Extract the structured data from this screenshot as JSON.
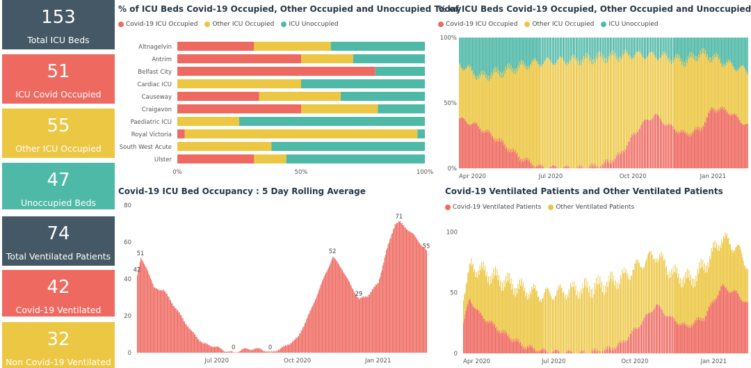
{
  "colors": {
    "covid": "#ee6a61",
    "other": "#ecc744",
    "unocc": "#4fb9a8",
    "dark": "#445965"
  },
  "kpis": [
    {
      "value": "153",
      "label": "Total ICU Beds",
      "color": "#445965"
    },
    {
      "value": "51",
      "label": "ICU Covid Occupied",
      "color": "#ee6a61"
    },
    {
      "value": "55",
      "label": "Other ICU Occupied",
      "color": "#ecc744"
    },
    {
      "value": "47",
      "label": "Unoccupied Beds",
      "color": "#4fb9a8"
    },
    {
      "value": "74",
      "label": "Total Ventilated Patients",
      "color": "#445965"
    },
    {
      "value": "42",
      "label": "Covid-19 Ventilated",
      "color": "#ee6a61"
    },
    {
      "value": "32",
      "label": "Non Covid-19 Ventilated",
      "color": "#ecc744"
    }
  ],
  "chart_data": [
    {
      "type": "bar",
      "title": "% of ICU Beds Covid-19 Occupied, Other Occupied and Unoccupied Today",
      "orientation": "horizontal-stacked-100",
      "legend": [
        "Covid-19 ICU Occupied",
        "Other ICU Occupied",
        "ICU Unoccupied"
      ],
      "categories": [
        "Altnagelvin",
        "Antrim",
        "Belfast City",
        "Cardiac ICU",
        "Causeway",
        "Craigavon",
        "Paediatric ICU",
        "Royal Victoria",
        "South West Acute",
        "Ulster"
      ],
      "series": [
        {
          "name": "Covid-19 ICU Occupied",
          "values": [
            31,
            50,
            80,
            0,
            33,
            50,
            0,
            3,
            0,
            31
          ]
        },
        {
          "name": "Other ICU Occupied",
          "values": [
            31,
            21,
            0,
            50,
            33,
            31,
            25,
            94,
            38,
            13
          ]
        },
        {
          "name": "ICU Unoccupied",
          "values": [
            38,
            29,
            20,
            50,
            34,
            19,
            75,
            3,
            62,
            56
          ]
        }
      ],
      "xticks": [
        "0%",
        "50%",
        "100%"
      ],
      "xlim": [
        0,
        100
      ]
    },
    {
      "type": "area",
      "title": "% of ICU Beds Covid-19 Occupied, Other Occupied and Unoccupied",
      "legend": [
        "Covid-19 ICU Occupied",
        "Other ICU Occupied",
        "ICU Unoccupied"
      ],
      "x_start": "2020-04-01",
      "x_end": "2021-02-25",
      "xticks": [
        "Apr 2020",
        "Jul 2020",
        "Oct 2020",
        "Jan 2021"
      ],
      "yticks": [
        "0%",
        "50%",
        "100%"
      ],
      "ylim": [
        0,
        100
      ],
      "covid_pct_keypoints": [
        [
          "2020-04-01",
          38
        ],
        [
          "2020-04-20",
          33
        ],
        [
          "2020-05-15",
          22
        ],
        [
          "2020-06-10",
          8
        ],
        [
          "2020-07-01",
          1
        ],
        [
          "2020-08-15",
          0
        ],
        [
          "2020-09-10",
          2
        ],
        [
          "2020-10-01",
          10
        ],
        [
          "2020-10-25",
          33
        ],
        [
          "2020-11-10",
          41
        ],
        [
          "2020-11-25",
          33
        ],
        [
          "2020-12-15",
          26
        ],
        [
          "2021-01-01",
          30
        ],
        [
          "2021-01-15",
          46
        ],
        [
          "2021-02-01",
          44
        ],
        [
          "2021-02-25",
          32
        ]
      ],
      "occupied_pct_keypoints": [
        [
          "2020-04-01",
          80
        ],
        [
          "2020-04-25",
          70
        ],
        [
          "2020-05-20",
          74
        ],
        [
          "2020-06-20",
          80
        ],
        [
          "2020-07-15",
          82
        ],
        [
          "2020-08-15",
          83
        ],
        [
          "2020-09-15",
          85
        ],
        [
          "2020-10-15",
          87
        ],
        [
          "2020-11-15",
          86
        ],
        [
          "2020-12-15",
          82
        ],
        [
          "2021-01-01",
          88
        ],
        [
          "2021-01-15",
          85
        ],
        [
          "2021-02-01",
          80
        ],
        [
          "2021-02-25",
          74
        ]
      ]
    },
    {
      "type": "area",
      "title": "Covid-19 ICU Bed Occupancy : 5 Day Rolling Average",
      "x_start": "2020-04-01",
      "x_end": "2021-02-25",
      "xticks": [
        "Jul 2020",
        "Oct 2020",
        "Jan 2021"
      ],
      "yticks": [
        "0",
        "20",
        "40",
        "60",
        "80"
      ],
      "ylim": [
        0,
        80
      ],
      "keypoints": [
        [
          "2020-04-01",
          42
        ],
        [
          "2020-04-05",
          51
        ],
        [
          "2020-04-12",
          46
        ],
        [
          "2020-04-20",
          35
        ],
        [
          "2020-05-01",
          34
        ],
        [
          "2020-05-15",
          24
        ],
        [
          "2020-06-01",
          12
        ],
        [
          "2020-06-15",
          5
        ],
        [
          "2020-07-01",
          3
        ],
        [
          "2020-07-10",
          1
        ],
        [
          "2020-07-20",
          0
        ],
        [
          "2020-08-01",
          2
        ],
        [
          "2020-08-20",
          2
        ],
        [
          "2020-08-31",
          0
        ],
        [
          "2020-09-15",
          3
        ],
        [
          "2020-10-01",
          8
        ],
        [
          "2020-10-15",
          22
        ],
        [
          "2020-11-01",
          42
        ],
        [
          "2020-11-10",
          52
        ],
        [
          "2020-11-20",
          46
        ],
        [
          "2020-12-01",
          36
        ],
        [
          "2020-12-10",
          29
        ],
        [
          "2020-12-20",
          31
        ],
        [
          "2021-01-01",
          38
        ],
        [
          "2021-01-10",
          55
        ],
        [
          "2021-01-20",
          70
        ],
        [
          "2021-01-25",
          71
        ],
        [
          "2021-02-10",
          64
        ],
        [
          "2021-02-20",
          58
        ],
        [
          "2021-02-25",
          55
        ]
      ],
      "data_labels": [
        {
          "date": "2020-04-01",
          "value": "42"
        },
        {
          "date": "2020-04-05",
          "value": "51"
        },
        {
          "date": "2020-07-20",
          "value": "0"
        },
        {
          "date": "2020-08-31",
          "value": "0"
        },
        {
          "date": "2020-11-10",
          "value": "52"
        },
        {
          "date": "2020-12-10",
          "value": "29"
        },
        {
          "date": "2021-01-25",
          "value": "71"
        },
        {
          "date": "2021-02-25",
          "value": "55"
        }
      ]
    },
    {
      "type": "area",
      "title": "Covid-19 Ventilated Patients and Other Ventilated Patients",
      "legend": [
        "Covid-19 Ventilated Patients",
        "Other Ventilated Patients"
      ],
      "x_start": "2020-04-01",
      "x_end": "2021-02-25",
      "xticks": [
        "Apr 2020",
        "Jul 2020",
        "Oct 2020",
        "Jan 2021"
      ],
      "yticks": [
        "0",
        "50",
        "100"
      ],
      "ylim": [
        0,
        110
      ],
      "covid_keypoints": [
        [
          "2020-04-01",
          25
        ],
        [
          "2020-04-08",
          45
        ],
        [
          "2020-04-20",
          32
        ],
        [
          "2020-05-15",
          18
        ],
        [
          "2020-06-10",
          6
        ],
        [
          "2020-07-01",
          2
        ],
        [
          "2020-08-15",
          0
        ],
        [
          "2020-09-15",
          3
        ],
        [
          "2020-10-01",
          8
        ],
        [
          "2020-10-20",
          22
        ],
        [
          "2020-11-10",
          40
        ],
        [
          "2020-11-25",
          30
        ],
        [
          "2020-12-15",
          22
        ],
        [
          "2021-01-05",
          30
        ],
        [
          "2021-01-25",
          55
        ],
        [
          "2021-02-10",
          50
        ],
        [
          "2021-02-25",
          40
        ]
      ],
      "total_keypoints": [
        [
          "2020-04-01",
          50
        ],
        [
          "2020-04-10",
          72
        ],
        [
          "2020-05-01",
          65
        ],
        [
          "2020-06-01",
          55
        ],
        [
          "2020-07-01",
          48
        ],
        [
          "2020-08-01",
          52
        ],
        [
          "2020-09-01",
          55
        ],
        [
          "2020-10-01",
          62
        ],
        [
          "2020-10-25",
          75
        ],
        [
          "2020-11-10",
          82
        ],
        [
          "2020-12-01",
          65
        ],
        [
          "2020-12-20",
          60
        ],
        [
          "2021-01-05",
          72
        ],
        [
          "2021-01-25",
          95
        ],
        [
          "2021-02-10",
          88
        ],
        [
          "2021-02-25",
          72
        ]
      ]
    }
  ]
}
